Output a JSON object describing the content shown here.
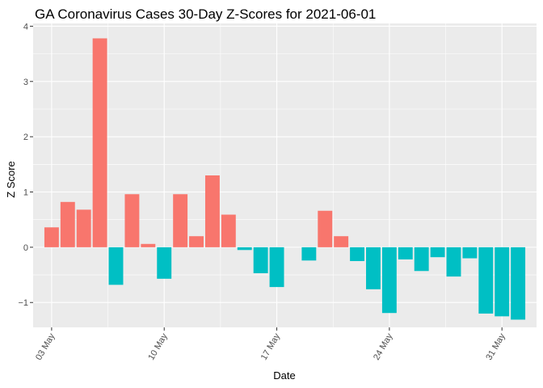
{
  "chart_data": {
    "type": "bar",
    "title": "GA Coronavirus Cases 30-Day Z-Scores for 2021-06-01",
    "xlabel": "Date",
    "ylabel": "Z Score",
    "x_ticks": [
      {
        "day": 3,
        "label": "03 May"
      },
      {
        "day": 10,
        "label": "10 May"
      },
      {
        "day": 17,
        "label": "17 May"
      },
      {
        "day": 24,
        "label": "24 May"
      },
      {
        "day": 31,
        "label": "31 May"
      }
    ],
    "y_ticks": [
      -1,
      0,
      1,
      2,
      3,
      4
    ],
    "ylim": [
      -1.45,
      4.05
    ],
    "xlim": [
      1.85,
      33.15
    ],
    "colors": {
      "positive": "#f8766d",
      "negative": "#00bfc4",
      "panel": "#ebebeb",
      "grid": "#ffffff"
    },
    "bars": [
      {
        "day": 3,
        "value": 0.36
      },
      {
        "day": 4,
        "value": 0.82
      },
      {
        "day": 5,
        "value": 0.68
      },
      {
        "day": 6,
        "value": 3.78
      },
      {
        "day": 7,
        "value": -0.68
      },
      {
        "day": 8,
        "value": 0.96
      },
      {
        "day": 9,
        "value": 0.06
      },
      {
        "day": 10,
        "value": -0.57
      },
      {
        "day": 11,
        "value": 0.96
      },
      {
        "day": 12,
        "value": 0.2
      },
      {
        "day": 13,
        "value": 1.3
      },
      {
        "day": 14,
        "value": 0.59
      },
      {
        "day": 15,
        "value": -0.05
      },
      {
        "day": 16,
        "value": -0.47
      },
      {
        "day": 17,
        "value": -0.72
      },
      {
        "day": 18,
        "value": 0.0
      },
      {
        "day": 19,
        "value": -0.24
      },
      {
        "day": 20,
        "value": 0.66
      },
      {
        "day": 21,
        "value": 0.2
      },
      {
        "day": 22,
        "value": -0.25
      },
      {
        "day": 23,
        "value": -0.76
      },
      {
        "day": 24,
        "value": -1.19
      },
      {
        "day": 25,
        "value": -0.22
      },
      {
        "day": 26,
        "value": -0.43
      },
      {
        "day": 27,
        "value": -0.18
      },
      {
        "day": 28,
        "value": -0.53
      },
      {
        "day": 29,
        "value": -0.2
      },
      {
        "day": 30,
        "value": -1.2
      },
      {
        "day": 31,
        "value": -1.25
      },
      {
        "day": 32,
        "value": -1.31
      }
    ]
  }
}
